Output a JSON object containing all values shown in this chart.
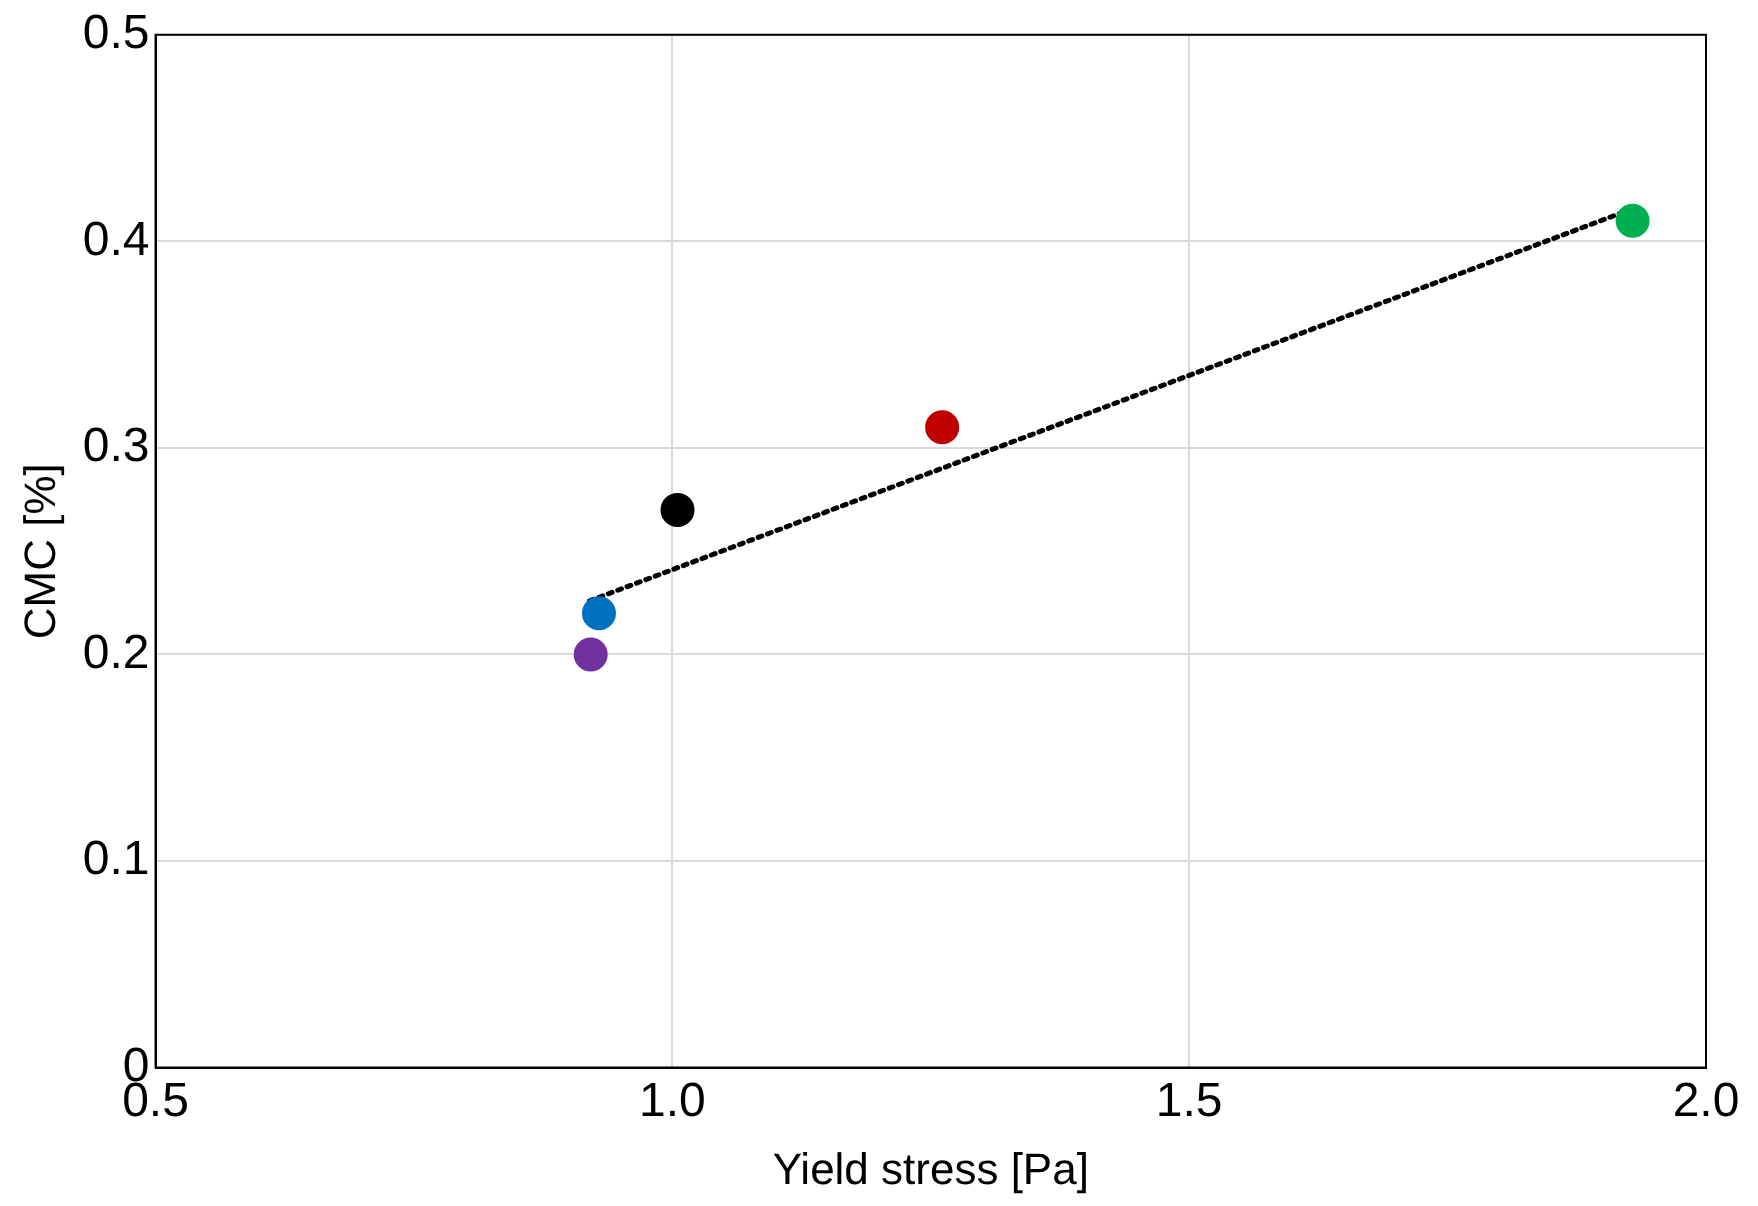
{
  "chart_data": {
    "type": "scatter",
    "xlabel": "Yield stress [Pa]",
    "ylabel": "CMC [%]",
    "xlim": [
      0.5,
      2.0
    ],
    "xticks": [
      0.5,
      {
        "value": 1,
        "label": "1.0"
      },
      1.5,
      {
        "value": 2,
        "label": "2.0"
      }
    ],
    "ylim": [
      0,
      0.5
    ],
    "yticks": [
      0,
      0.1,
      0.2,
      0.3,
      0.4,
      0.5
    ],
    "grid": true,
    "legend": false,
    "series": [
      {
        "x": [
          0.921,
          0.929,
          1.005,
          1.261,
          1.929
        ],
        "values": [
          0.2,
          0.22,
          0.27,
          0.31,
          0.41
        ],
        "colors": [
          "#7030a0",
          "#0070c0",
          "#000000",
          "#c00000",
          "#00b050"
        ],
        "marker": "circle"
      },
      {
        "type": "line",
        "x": [
          0.92,
          1.93
        ],
        "values": [
          0.226,
          0.416
        ],
        "color": "#000000",
        "line_style": "dotted",
        "marker": "none"
      }
    ]
  }
}
